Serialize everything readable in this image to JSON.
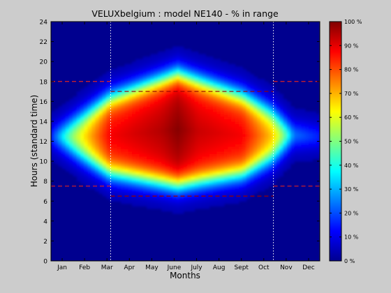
{
  "chart_data": {
    "type": "heatmap",
    "title": "VELUXbelgium : model NE140 - % in range",
    "xlabel": "Months",
    "ylabel": "Hours (standard time)",
    "x_ticks": [
      "Jan",
      "Feb",
      "Mar",
      "Apr",
      "May",
      "June",
      "July",
      "Aug",
      "Sept",
      "Oct",
      "Nov",
      "Dec"
    ],
    "ylim": [
      0,
      24
    ],
    "y_ticks": [
      0,
      2,
      4,
      6,
      8,
      10,
      12,
      14,
      16,
      18,
      20,
      22,
      24
    ],
    "colorbar": {
      "range": [
        0,
        100
      ],
      "ticks": [
        "0 %",
        "10 %",
        "20 %",
        "30 %",
        "40 %",
        "50 %",
        "60 %",
        "70 %",
        "80 %",
        "90 %",
        "100 %"
      ],
      "colormap": "jet"
    },
    "month_dividers_day": [
      81,
      302
    ],
    "dashed_lines": [
      {
        "x": [
          0,
          81
        ],
        "y": 18
      },
      {
        "x": [
          81,
          302
        ],
        "y": 17
      },
      {
        "x": [
          302,
          365
        ],
        "y": 18
      },
      {
        "x": [
          0,
          81
        ],
        "y": 7.5
      },
      {
        "x": [
          81,
          302
        ],
        "y": 6.5
      },
      {
        "x": [
          302,
          365
        ],
        "y": 7.5
      }
    ],
    "field_model": {
      "comfort_start_hour_by_day": [
        [
          0,
          12.5
        ],
        [
          40,
          10.5
        ],
        [
          80,
          8.8
        ],
        [
          172,
          7.6
        ],
        [
          260,
          8.7
        ],
        [
          300,
          10.2
        ],
        [
          330,
          12.3
        ],
        [
          365,
          12.5
        ]
      ],
      "comfort_end_hour_by_day": [
        [
          0,
          12.5
        ],
        [
          40,
          14.5
        ],
        [
          80,
          16.4
        ],
        [
          172,
          18.8
        ],
        [
          260,
          16.6
        ],
        [
          300,
          15
        ],
        [
          330,
          13
        ],
        [
          365,
          12.5
        ]
      ],
      "plateau_percent_by_day": [
        [
          0,
          45
        ],
        [
          40,
          60
        ],
        [
          80,
          82
        ],
        [
          150,
          88
        ],
        [
          172,
          92
        ],
        [
          200,
          86
        ],
        [
          260,
          82
        ],
        [
          300,
          65
        ],
        [
          330,
          48
        ],
        [
          365,
          45
        ]
      ],
      "transition_hours": 1.4,
      "blue_percent": 4
    }
  }
}
